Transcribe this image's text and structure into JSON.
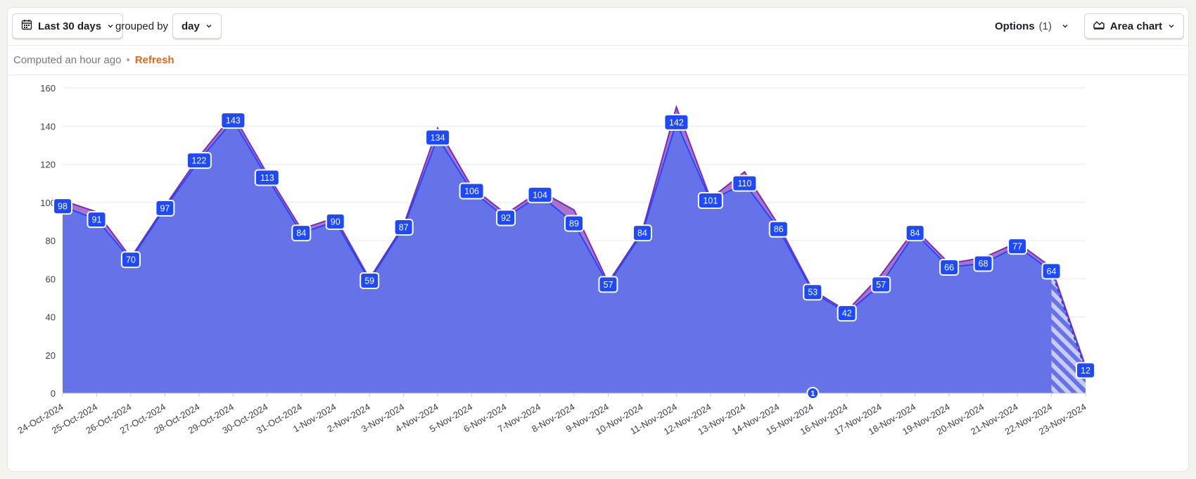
{
  "toolbar": {
    "date_range_label": "Last 30 days",
    "grouped_by_text": "grouped by",
    "interval_label": "day",
    "options_label": "Options",
    "options_count": "(1)",
    "chart_type_label": "Area chart"
  },
  "status": {
    "computed_text": "Computed an hour ago",
    "separator": "•",
    "refresh_label": "Refresh"
  },
  "annotation_badge": "1",
  "icons": {
    "date": "calendar-icon",
    "dropdown": "chevron-down-icon",
    "chart_type": "area-chart-icon"
  },
  "colors": {
    "series_primary": "#1d4aff",
    "area_fill": "#6672e8",
    "area_top": "#9b5bc6",
    "secondary_line": "#7d2ab8",
    "refresh": "#e8641b",
    "incomplete_hatch": "#c9ccf7"
  },
  "chart_data": {
    "type": "area",
    "categories": [
      "24-Oct-2024",
      "25-Oct-2024",
      "26-Oct-2024",
      "27-Oct-2024",
      "28-Oct-2024",
      "29-Oct-2024",
      "30-Oct-2024",
      "31-Oct-2024",
      "1-Nov-2024",
      "2-Nov-2024",
      "3-Nov-2024",
      "4-Nov-2024",
      "5-Nov-2024",
      "6-Nov-2024",
      "7-Nov-2024",
      "8-Nov-2024",
      "9-Nov-2024",
      "10-Nov-2024",
      "11-Nov-2024",
      "12-Nov-2024",
      "13-Nov-2024",
      "14-Nov-2024",
      "15-Nov-2024",
      "16-Nov-2024",
      "17-Nov-2024",
      "18-Nov-2024",
      "19-Nov-2024",
      "20-Nov-2024",
      "21-Nov-2024",
      "22-Nov-2024",
      "23-Nov-2024"
    ],
    "series": [
      {
        "values": [
          98,
          91,
          70,
          97,
          122,
          143,
          113,
          84,
          90,
          59,
          87,
          134,
          106,
          92,
          104,
          89,
          57,
          84,
          142,
          101,
          110,
          86,
          53,
          42,
          57,
          84,
          66,
          68,
          77,
          64,
          12
        ]
      },
      {
        "values": [
          101,
          95,
          71,
          98,
          124,
          146,
          115,
          86,
          92,
          60,
          88,
          139,
          108,
          94,
          106,
          96,
          58,
          85,
          150,
          102,
          116,
          88,
          54,
          43,
          62,
          86,
          68,
          71,
          79,
          66,
          14
        ]
      }
    ],
    "ylim": [
      0,
      160
    ],
    "yticks": [
      0,
      20,
      40,
      60,
      80,
      100,
      120,
      140,
      160
    ],
    "grid": true,
    "incomplete_from_index": 29
  }
}
